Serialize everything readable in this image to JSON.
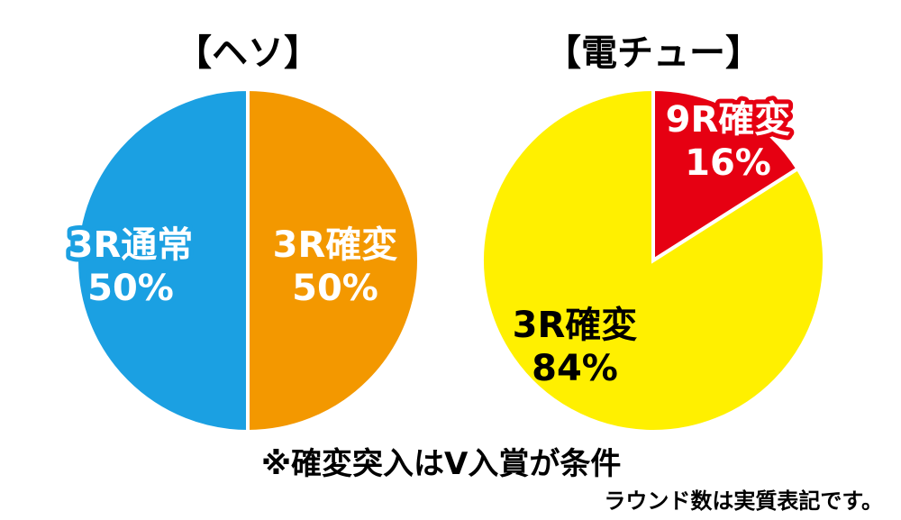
{
  "chart_data": [
    {
      "type": "pie",
      "title": "【ヘソ】",
      "slices": [
        {
          "label": "3R確変",
          "value": 50,
          "value_label": "50%",
          "color": "#f39800"
        },
        {
          "label": "3R通常",
          "value": 50,
          "value_label": "50%",
          "color": "#1ba0e2"
        }
      ]
    },
    {
      "type": "pie",
      "title": "【電チュー】",
      "slices": [
        {
          "label": "9R確変",
          "value": 16,
          "value_label": "16%",
          "color": "#e60012"
        },
        {
          "label": "3R確変",
          "value": 84,
          "value_label": "84%",
          "color": "#fff000"
        }
      ]
    }
  ],
  "footnote": "※確変突入はV入賞が条件",
  "caption": "ラウンド数は実質表記です。"
}
